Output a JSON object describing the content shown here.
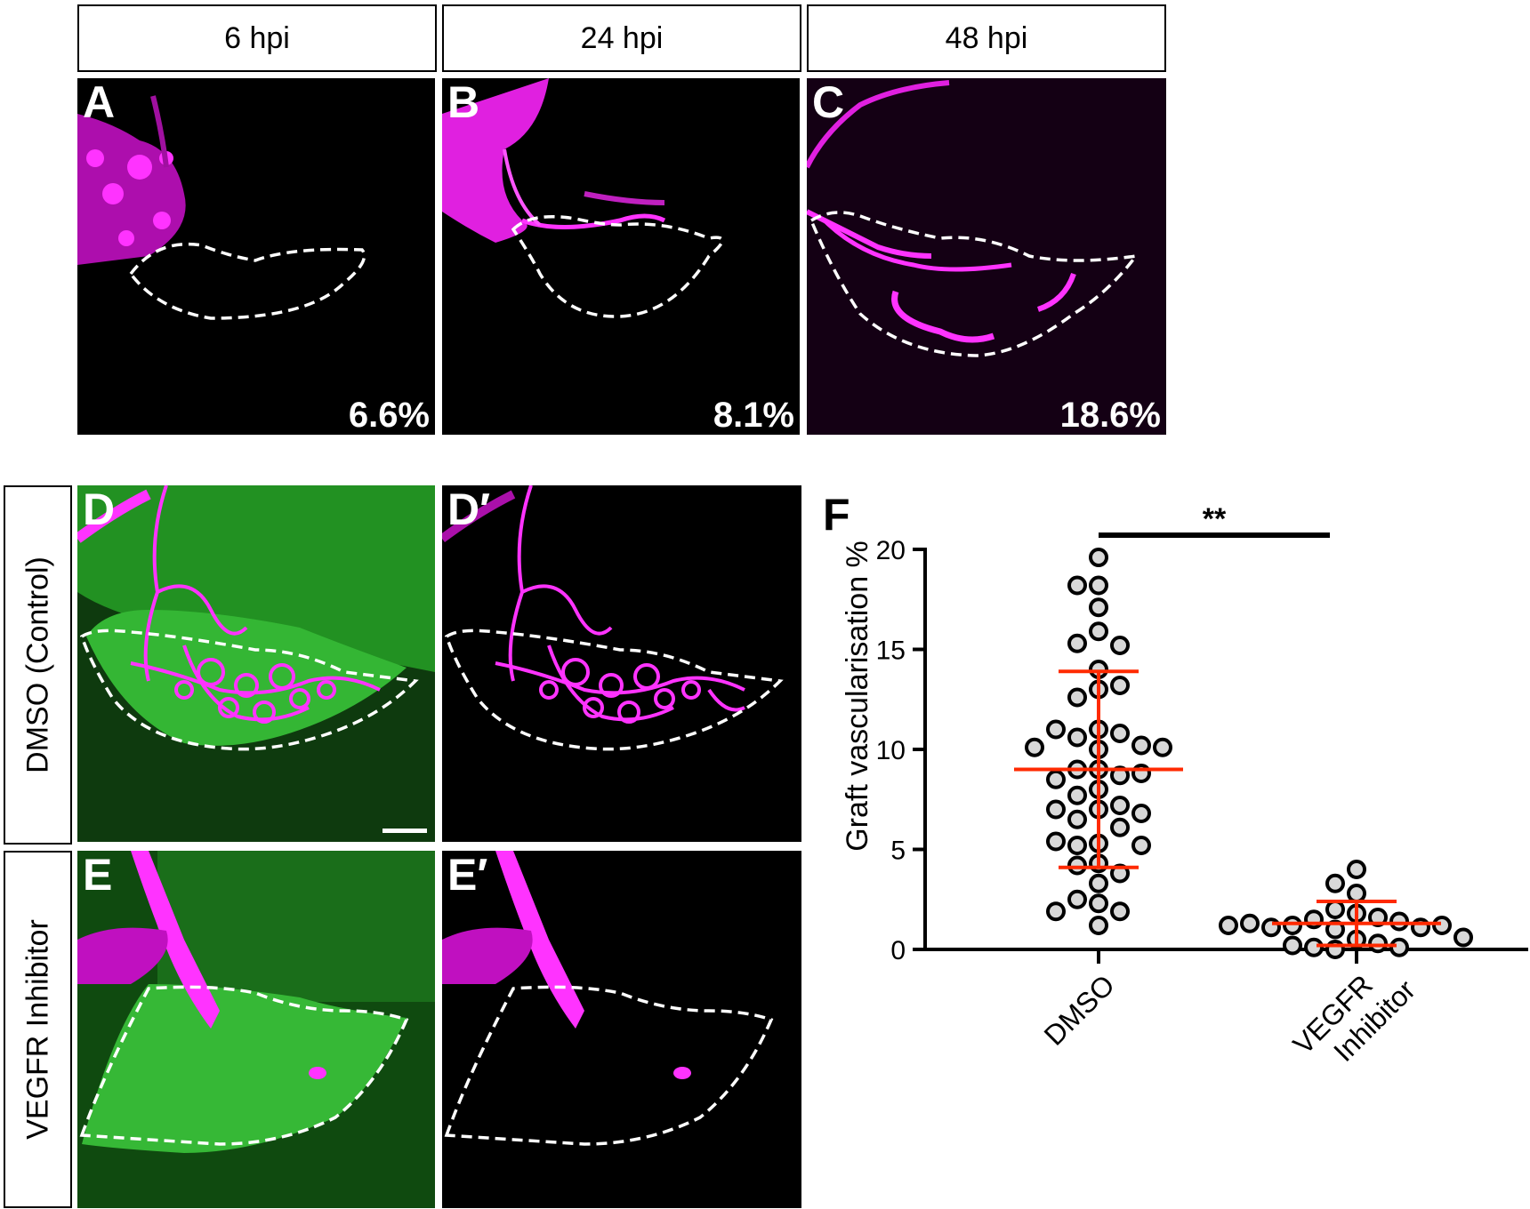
{
  "columns": [
    "6 hpi",
    "24 hpi",
    "48 hpi"
  ],
  "panels_top": [
    {
      "label": "A",
      "pct": "6.6%"
    },
    {
      "label": "B",
      "pct": "8.1%"
    },
    {
      "label": "C",
      "pct": "18.6%"
    }
  ],
  "rows": [
    "DMSO (Control)",
    "VEGFR Inhibitor"
  ],
  "panels_bottom": [
    {
      "label": "D"
    },
    {
      "label": "D′"
    },
    {
      "label": "E"
    },
    {
      "label": "E′"
    }
  ],
  "colors": {
    "vessel": "#ff1aff",
    "graft": "#22c422",
    "background": "#000000",
    "error_bar": "#ff2a00"
  },
  "chart_data": {
    "type": "scatter",
    "panel_label": "F",
    "ylabel": "Graft vascularisation %",
    "ylim": [
      0,
      20
    ],
    "yticks": [
      0,
      5,
      10,
      15,
      20
    ],
    "categories": [
      "DMSO",
      "VEGFR Inhibitor"
    ],
    "category_labels": [
      [
        "DMSO"
      ],
      [
        "VEGFR",
        "Inhibitor"
      ]
    ],
    "series": [
      {
        "category": "DMSO",
        "values": [
          19.6,
          18.2,
          18.2,
          17.1,
          15.9,
          15.3,
          15.2,
          14.0,
          13.0,
          12.6,
          13.2,
          11.0,
          10.6,
          10.8,
          11.0,
          10.2,
          10.1,
          10.1,
          10.0,
          9.0,
          9.0,
          8.7,
          8.5,
          8.8,
          8.0,
          7.7,
          7.2,
          7.0,
          7.0,
          6.8,
          6.5,
          6.1,
          5.3,
          5.2,
          5.4,
          5.2,
          4.3,
          4.2,
          3.8,
          3.3,
          2.5,
          2.3,
          1.9,
          1.9,
          1.2
        ],
        "mean": 9.0,
        "sd_low": 4.1,
        "sd_high": 13.9
      },
      {
        "category": "VEGFR Inhibitor",
        "values": [
          4.0,
          3.3,
          2.8,
          2.0,
          1.8,
          1.6,
          1.5,
          1.4,
          1.2,
          1.1,
          1.0,
          1.1,
          1.2,
          1.3,
          0.5,
          0.3,
          0.1,
          0.0,
          0.1,
          0.2,
          0.6,
          1.2
        ],
        "mean": 1.3,
        "sd_low": 0.2,
        "sd_high": 2.4
      }
    ],
    "significance": "**"
  }
}
